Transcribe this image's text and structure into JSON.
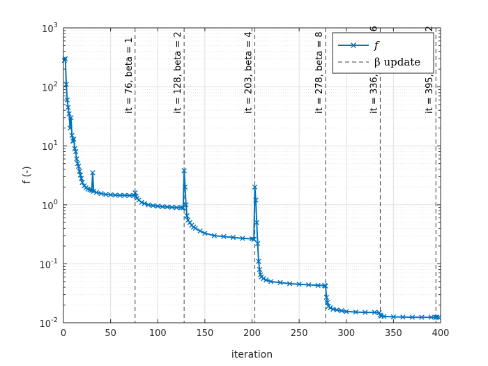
{
  "chart_data": {
    "type": "line",
    "xlabel": "iteration",
    "ylabel": "f (-)",
    "xlim": [
      0,
      400
    ],
    "ylim": [
      0.01,
      1000
    ],
    "yscale": "log",
    "x_ticks": [
      "0",
      "50",
      "100",
      "150",
      "200",
      "250",
      "300",
      "350",
      "400"
    ],
    "y_ticks": [
      {
        "base": "10",
        "exp": "-2"
      },
      {
        "base": "10",
        "exp": "-1"
      },
      {
        "base": "10",
        "exp": "0"
      },
      {
        "base": "10",
        "exp": "1"
      },
      {
        "base": "10",
        "exp": "2"
      },
      {
        "base": "10",
        "exp": "3"
      }
    ],
    "grid": true,
    "legend_position": "top-right",
    "legend": [
      {
        "label": "f",
        "style": "solid line with x markers"
      },
      {
        "label": "β update",
        "style": "dashed line"
      }
    ],
    "colors": {
      "series": "#0072BD",
      "beta_line": "#404040"
    },
    "series": [
      {
        "name": "f",
        "marker": "x",
        "x": [
          1,
          2,
          3,
          4,
          5,
          6,
          7,
          8,
          9,
          10,
          11,
          12,
          13,
          14,
          15,
          16,
          17,
          18,
          19,
          20,
          22,
          24,
          26,
          28,
          30,
          31,
          32,
          35,
          40,
          45,
          50,
          55,
          60,
          65,
          70,
          75,
          76,
          77,
          78,
          80,
          83,
          86,
          90,
          95,
          100,
          105,
          110,
          115,
          120,
          125,
          127,
          128,
          129,
          130,
          131,
          132,
          134,
          136,
          138,
          140,
          145,
          150,
          160,
          170,
          180,
          190,
          200,
          202,
          203,
          204,
          205,
          206,
          207,
          208,
          209,
          210,
          212,
          215,
          220,
          230,
          240,
          250,
          260,
          270,
          277,
          278,
          279,
          280,
          281,
          283,
          286,
          290,
          295,
          300,
          310,
          320,
          330,
          335,
          336,
          337,
          340,
          350,
          360,
          370,
          380,
          390,
          395,
          396,
          398
        ],
        "y": [
          280,
          300,
          110,
          60,
          45,
          35,
          20,
          30,
          15,
          12,
          13,
          9,
          8,
          6,
          5,
          4.5,
          3.7,
          3.2,
          2.8,
          2.4,
          2.1,
          1.95,
          1.85,
          1.8,
          1.75,
          3.5,
          1.7,
          1.62,
          1.55,
          1.5,
          1.48,
          1.46,
          1.45,
          1.45,
          1.44,
          1.44,
          1.6,
          1.4,
          1.3,
          1.2,
          1.1,
          1.05,
          1.0,
          0.97,
          0.95,
          0.93,
          0.92,
          0.91,
          0.9,
          0.9,
          0.89,
          3.8,
          2.0,
          1.0,
          0.65,
          0.55,
          0.5,
          0.45,
          0.42,
          0.4,
          0.36,
          0.33,
          0.3,
          0.29,
          0.28,
          0.27,
          0.265,
          0.26,
          2.0,
          1.2,
          0.5,
          0.22,
          0.11,
          0.08,
          0.065,
          0.06,
          0.056,
          0.053,
          0.05,
          0.048,
          0.046,
          0.045,
          0.044,
          0.043,
          0.043,
          0.042,
          0.027,
          0.022,
          0.019,
          0.018,
          0.017,
          0.0165,
          0.016,
          0.0155,
          0.0152,
          0.015,
          0.015,
          0.0148,
          0.0135,
          0.013,
          0.0128,
          0.0126,
          0.0125,
          0.0124,
          0.0124,
          0.0124,
          0.0124,
          0.0124,
          0.0123
        ],
        "color": "#0072BD"
      }
    ],
    "beta_updates": [
      {
        "x": 76,
        "label": "it = 76, beta = 1"
      },
      {
        "x": 128,
        "label": "it = 128, beta = 2"
      },
      {
        "x": 203,
        "label": "it = 203, beta = 4"
      },
      {
        "x": 278,
        "label": "it = 278, beta = 8"
      },
      {
        "x": 336,
        "label": "it = 336, beta = 16"
      },
      {
        "x": 395,
        "label": "it = 395, beta = 32"
      }
    ]
  }
}
